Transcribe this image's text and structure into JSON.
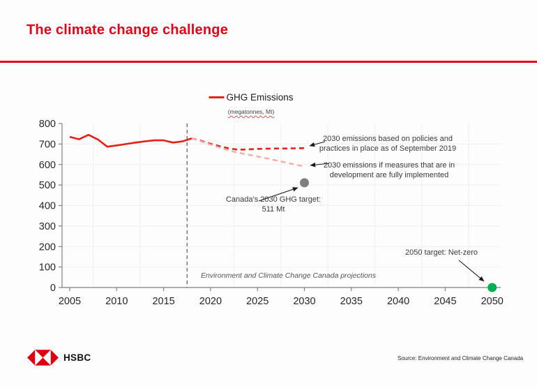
{
  "slide": {
    "title": "The climate change challenge",
    "accent_color": "#e30019"
  },
  "chart_data": {
    "type": "line",
    "title": "GHG Emissions",
    "subtitle": "(megatonnes, Mt)",
    "xlabel": "",
    "ylabel": "",
    "ylim": [
      0,
      800
    ],
    "yticks": [
      0,
      100,
      200,
      300,
      400,
      500,
      600,
      700,
      800
    ],
    "xticks": [
      2005,
      2010,
      2015,
      2020,
      2025,
      2030,
      2035,
      2040,
      2045,
      2050
    ],
    "grid": true,
    "legend_position": "top-center",
    "projection_divider_year": 2017.5,
    "series": [
      {
        "name": "GHG emissions (historical)",
        "style": "solid",
        "color": "#e32118",
        "x": [
          2005,
          2006,
          2007,
          2008,
          2009,
          2010,
          2011,
          2012,
          2013,
          2014,
          2015,
          2016,
          2017,
          2018
        ],
        "values": [
          735,
          723,
          745,
          722,
          687,
          693,
          700,
          707,
          713,
          718,
          718,
          707,
          713,
          727
        ]
      },
      {
        "name": "2030 emissions based on policies and practices in place as of September 2019",
        "style": "dashed",
        "color": "#e32118",
        "x": [
          2018,
          2019,
          2020,
          2021,
          2022,
          2023,
          2024,
          2025,
          2026,
          2027,
          2028,
          2029,
          2030
        ],
        "values": [
          727,
          716,
          701,
          689,
          678,
          672,
          674,
          676,
          677,
          678,
          678,
          679,
          680
        ]
      },
      {
        "name": "2030 emissions if measures that are in development are fully implemented",
        "style": "dashed",
        "color": "#f3b0aa",
        "x": [
          2018,
          2019,
          2020,
          2021,
          2022,
          2023,
          2024,
          2025,
          2026,
          2027,
          2028,
          2029,
          2030
        ],
        "values": [
          727,
          713,
          697,
          682,
          668,
          657,
          648,
          639,
          630,
          620,
          610,
          600,
          591
        ]
      }
    ],
    "points": [
      {
        "name": "Canada 2030 GHG target",
        "x": 2030,
        "value": 511,
        "color": "#7f7f7f"
      },
      {
        "name": "2050 net-zero target",
        "x": 2050,
        "value": 0,
        "color": "#00b050"
      }
    ],
    "annotations": [
      {
        "text": "2030 emissions based on policies and\npractices in place as of September 2019"
      },
      {
        "text": "2030 emissions if measures that are in\ndevelopment are fully implemented"
      },
      {
        "text": "Canada’s 2030 GHG target:\n511 Mt"
      },
      {
        "text": "2050 target: Net-zero"
      },
      {
        "text": "Environment and Climate Change Canada projections"
      }
    ]
  },
  "footer": {
    "logo_text": "HSBC",
    "source": "Source: Environment and Climate Change Canada"
  }
}
